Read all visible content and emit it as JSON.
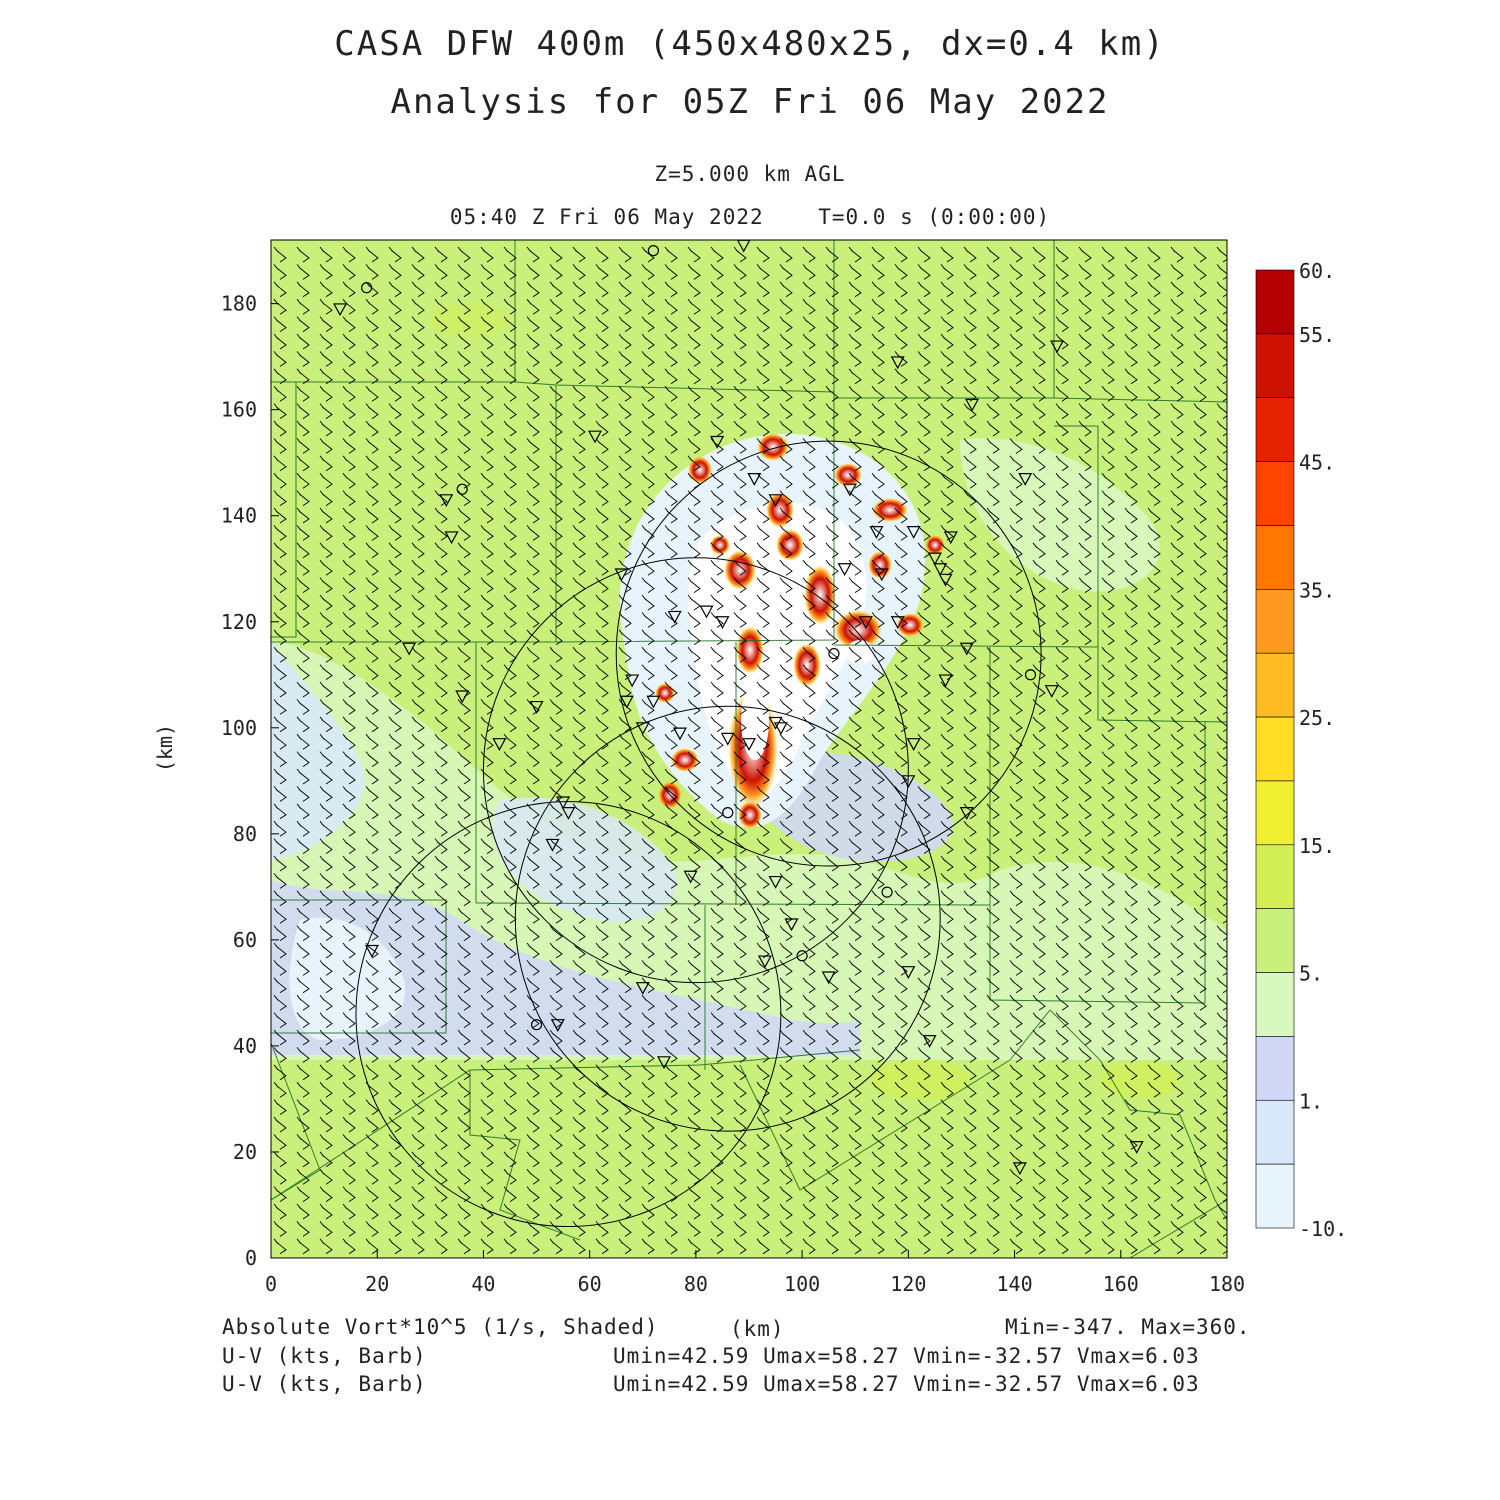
{
  "header": {
    "title_line1": "CASA DFW 400m (450x480x25, dx=0.4 km)",
    "title_line2": "Analysis for 05Z Fri 06 May 2022",
    "level": "Z=5.000 km AGL",
    "time": "05:40 Z Fri 06 May 2022    T=0.0 s (0:00:00)"
  },
  "axes": {
    "x_label": "(km)",
    "y_label": "(km)",
    "x_ticks": [
      "0",
      "20",
      "40",
      "60",
      "80",
      "100",
      "120",
      "140",
      "160",
      "180"
    ],
    "y_ticks": [
      "0",
      "20",
      "40",
      "60",
      "80",
      "100",
      "120",
      "140",
      "160",
      "180"
    ],
    "x_range_km": [
      0,
      180
    ],
    "y_range_km": [
      0,
      192
    ]
  },
  "colorbar": {
    "labels": [
      "60.",
      "55.",
      "45.",
      "35.",
      "25.",
      "15.",
      "5.",
      "1.",
      "-10."
    ],
    "colors": [
      "#b30000",
      "#cc1100",
      "#e52200",
      "#ff4400",
      "#ff7700",
      "#ff9922",
      "#ffbb22",
      "#ffdd22",
      "#f0f030",
      "#d4ef55",
      "#c8f07a",
      "#d8f8c0",
      "#d0d8f5",
      "#d8e8f8",
      "#e8f4fc"
    ]
  },
  "footer": {
    "field": "Absolute Vort*10^5 (1/s, Shaded)",
    "units": "(km)",
    "minmax": "Min=-347. Max=360.",
    "barb1": "U-V (kts, Barb)",
    "barb2": "U-V (kts, Barb)",
    "stats1": "Umin=42.59 Umax=58.27 Vmin=-32.57 Vmax=6.03",
    "stats2": "Umin=42.59 Umax=58.27 Vmin=-32.57 Vmax=6.03"
  },
  "map": {
    "radar_rings": [
      {
        "cx": 105,
        "cy": 114
      },
      {
        "cx": 80,
        "cy": 92
      },
      {
        "cx": 86,
        "cy": 64
      },
      {
        "cx": 56,
        "cy": 46
      }
    ],
    "stations_triangle": [
      [
        13,
        179
      ],
      [
        89,
        191
      ],
      [
        148,
        172
      ],
      [
        118,
        169
      ],
      [
        132,
        161
      ],
      [
        61,
        155
      ],
      [
        84,
        154
      ],
      [
        91,
        147
      ],
      [
        33,
        143
      ],
      [
        95,
        143
      ],
      [
        109,
        145
      ],
      [
        142,
        147
      ],
      [
        34,
        136
      ],
      [
        114,
        137
      ],
      [
        121,
        137
      ],
      [
        128,
        136
      ],
      [
        125,
        132
      ],
      [
        126,
        130
      ],
      [
        66,
        129
      ],
      [
        115,
        129
      ],
      [
        127,
        128
      ],
      [
        108,
        130
      ],
      [
        76,
        121
      ],
      [
        82,
        122
      ],
      [
        85,
        120
      ],
      [
        112,
        120
      ],
      [
        118,
        120
      ],
      [
        131,
        115
      ],
      [
        26,
        115
      ],
      [
        36,
        106
      ],
      [
        68,
        109
      ],
      [
        67,
        105
      ],
      [
        72,
        105
      ],
      [
        50,
        104
      ],
      [
        127,
        109
      ],
      [
        147,
        107
      ],
      [
        70,
        100
      ],
      [
        77,
        99
      ],
      [
        95,
        101
      ],
      [
        90,
        97
      ],
      [
        96,
        100
      ],
      [
        43,
        97
      ],
      [
        86,
        98
      ],
      [
        121,
        97
      ],
      [
        55,
        86
      ],
      [
        56,
        84
      ],
      [
        53,
        78
      ],
      [
        120,
        90
      ],
      [
        131,
        84
      ],
      [
        79,
        72
      ],
      [
        95,
        71
      ],
      [
        98,
        63
      ],
      [
        19,
        58
      ],
      [
        93,
        56
      ],
      [
        70,
        51
      ],
      [
        105,
        53
      ],
      [
        120,
        54
      ],
      [
        54,
        44
      ],
      [
        74,
        37
      ],
      [
        124,
        41
      ],
      [
        141,
        17
      ],
      [
        163,
        21
      ]
    ],
    "stations_circle": [
      [
        72,
        190
      ],
      [
        18,
        183
      ],
      [
        36,
        145
      ],
      [
        106,
        114
      ],
      [
        143,
        110
      ],
      [
        86,
        84
      ],
      [
        100,
        57
      ],
      [
        116,
        69
      ],
      [
        50,
        44
      ]
    ]
  }
}
